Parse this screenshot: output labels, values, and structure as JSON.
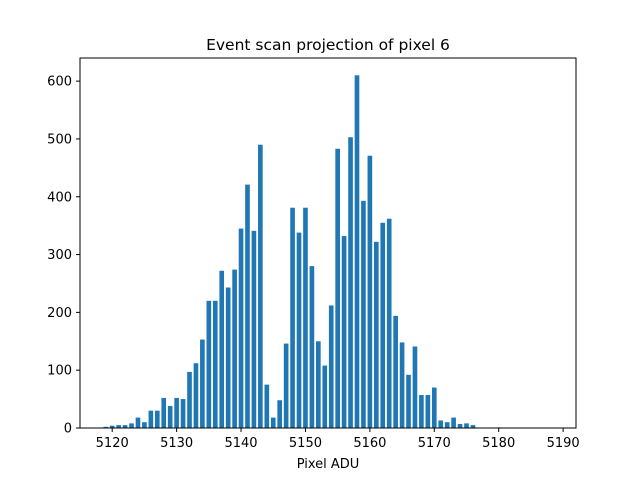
{
  "chart_data": {
    "type": "bar",
    "title": "Event scan projection of pixel 6",
    "xlabel": "Pixel ADU",
    "ylabel": "",
    "xlim": [
      5115,
      5192
    ],
    "ylim": [
      0,
      640
    ],
    "xticks": [
      "5120",
      "5130",
      "5140",
      "5150",
      "5160",
      "5170",
      "5180",
      "5190"
    ],
    "yticks": [
      "0",
      "100",
      "200",
      "300",
      "400",
      "500",
      "600"
    ],
    "bar_color": "#1f77b4",
    "grid": false,
    "x": [
      5119,
      5120,
      5121,
      5122,
      5123,
      5124,
      5125,
      5126,
      5127,
      5128,
      5129,
      5130,
      5131,
      5132,
      5133,
      5134,
      5135,
      5136,
      5137,
      5138,
      5139,
      5140,
      5141,
      5142,
      5143,
      5144,
      5145,
      5146,
      5147,
      5148,
      5149,
      5150,
      5151,
      5152,
      5153,
      5154,
      5155,
      5156,
      5157,
      5158,
      5159,
      5160,
      5161,
      5162,
      5163,
      5164,
      5165,
      5166,
      5167,
      5168,
      5169,
      5170,
      5171,
      5172,
      5173,
      5174,
      5175,
      5176,
      5177,
      5178,
      5179,
      5180,
      5181,
      5182,
      5183,
      5184,
      5185,
      5186,
      5187,
      5188,
      5189
    ],
    "values": [
      2,
      4,
      5,
      5,
      8,
      18,
      10,
      30,
      30,
      52,
      38,
      52,
      50,
      97,
      112,
      153,
      220,
      220,
      272,
      243,
      274,
      345,
      421,
      341,
      490,
      75,
      18,
      48,
      146,
      381,
      338,
      381,
      280,
      150,
      108,
      212,
      483,
      332,
      503,
      610,
      393,
      471,
      322,
      355,
      362,
      194,
      148,
      92,
      141,
      57,
      57,
      70,
      13,
      10,
      18,
      7,
      8,
      5,
      0,
      0,
      0,
      1,
      0,
      0,
      0,
      0,
      0,
      0,
      0,
      0,
      0
    ]
  }
}
